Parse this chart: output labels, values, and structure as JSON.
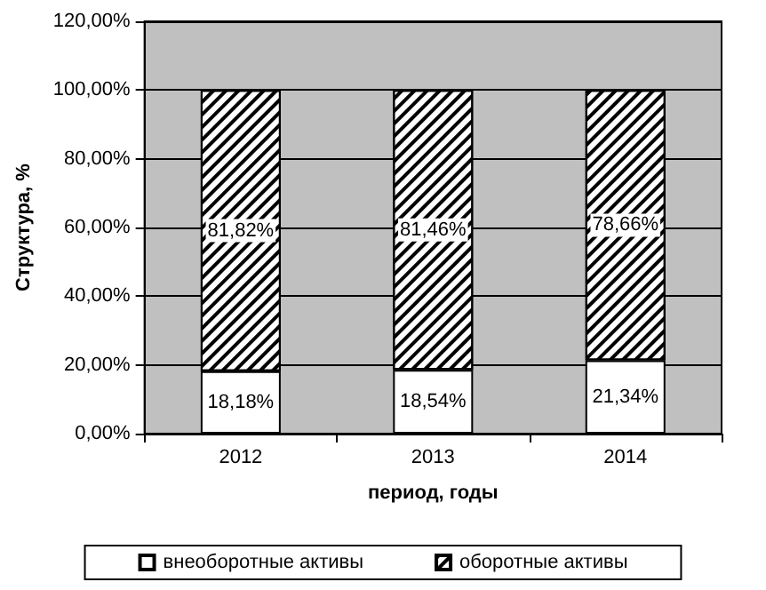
{
  "chart_data": {
    "type": "bar",
    "stacked": true,
    "xlabel": "период, годы",
    "ylabel": "Структура, %",
    "categories": [
      "2012",
      "2013",
      "2014"
    ],
    "series": [
      {
        "name": "внеоборотные активы",
        "color": "#ffffff",
        "values": [
          18.18,
          18.54,
          21.34
        ],
        "value_labels": [
          "18,18%",
          "18,54%",
          "21,34%"
        ]
      },
      {
        "name": "оборотные активы",
        "color": "#000000",
        "values": [
          81.82,
          81.46,
          78.66
        ],
        "value_labels": [
          "81,82%",
          "81,46%",
          "78,66%"
        ]
      }
    ],
    "ylim": [
      0,
      120
    ],
    "yticks": [
      {
        "value": 0,
        "label": "0,00%"
      },
      {
        "value": 20,
        "label": "20,00%"
      },
      {
        "value": 40,
        "label": "40,00%"
      },
      {
        "value": 60,
        "label": "60,00%"
      },
      {
        "value": 80,
        "label": "80,00%"
      },
      {
        "value": 100,
        "label": "100,00%"
      },
      {
        "value": 120,
        "label": "120,00%"
      }
    ],
    "grid": "y",
    "legend": "bottom"
  }
}
